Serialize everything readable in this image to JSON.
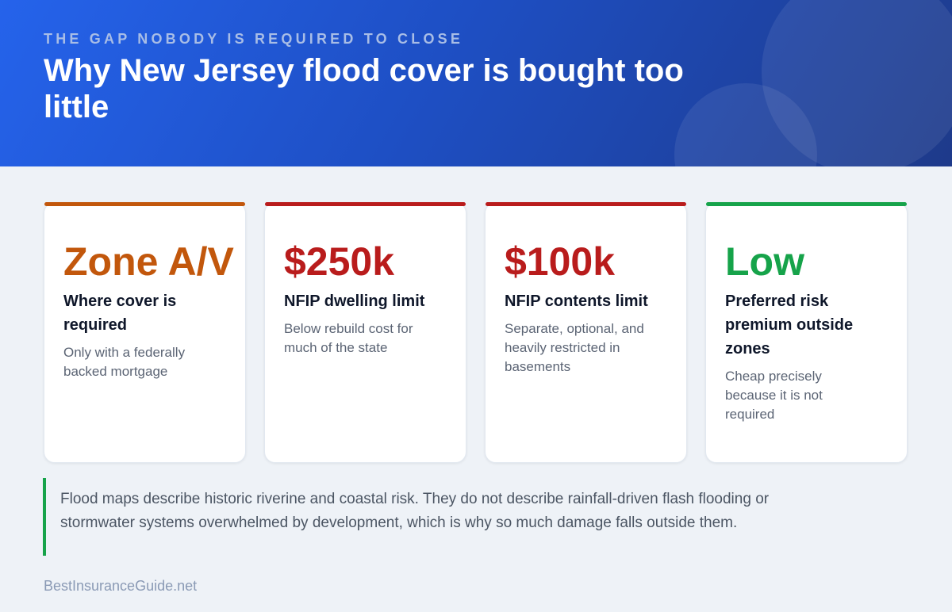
{
  "header": {
    "eyebrow": "THE GAP NOBODY IS REQUIRED TO CLOSE",
    "title": "Why New Jersey flood cover is bought too little"
  },
  "cards": [
    {
      "value": "Zone A/V",
      "label": "Where cover is required",
      "description": "Only with a federally backed mortgage"
    },
    {
      "value": "$250k",
      "label": "NFIP dwelling limit",
      "description": "Below rebuild cost for much of the state"
    },
    {
      "value": "$100k",
      "label": "NFIP contents limit",
      "description": "Separate, optional, and heavily restricted in basements"
    },
    {
      "value": "Low",
      "label": "Preferred risk premium outside zones",
      "description": "Cheap precisely because it is not required"
    }
  ],
  "note": "Flood maps describe historic riverine and coastal risk. They do not describe rainfall-driven flash flooding or stormwater systems overwhelmed by development, which is why so much damage falls outside them.",
  "footer": "BestInsuranceGuide.net"
}
